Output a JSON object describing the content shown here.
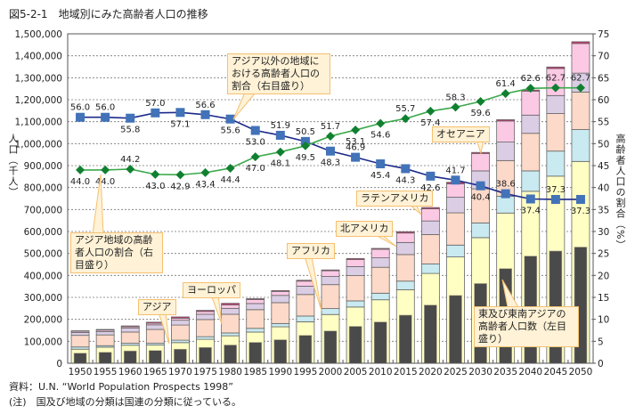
{
  "title": "図5-2-1　地域別にみた高齢者人口の推移",
  "source": "資料：U.N. “World Population Prospects 1998”",
  "note": "(注)　国及び地域の分類は国連の分類に従っている。",
  "chart_data": {
    "type": "bar",
    "stacked": true,
    "title": "地域別にみた高齢者人口の推移",
    "ylabel": "人口（千人）",
    "ylabel_right": "高齢者人口の割合（%）",
    "ylim": [
      0,
      1500000
    ],
    "ylim_right": [
      0,
      75
    ],
    "yticks": [
      "0",
      "100,000",
      "200,000",
      "300,000",
      "400,000",
      "500,000",
      "600,000",
      "700,000",
      "800,000",
      "900,000",
      "1,000,000",
      "1,100,000",
      "1,200,000",
      "1,300,000",
      "1,400,000",
      "1,500,000"
    ],
    "yticks_right": [
      "0",
      "5",
      "10",
      "15",
      "20",
      "25",
      "30",
      "35",
      "40",
      "45",
      "50",
      "55",
      "60",
      "65",
      "70",
      "75"
    ],
    "grid": true,
    "categories": [
      "1950",
      "1955",
      "1960",
      "1965",
      "1970",
      "1975",
      "1980",
      "1985",
      "1990",
      "1995",
      "2000",
      "2005",
      "2010",
      "2015",
      "2020",
      "2025",
      "2030",
      "2035",
      "2040",
      "2045",
      "2050"
    ],
    "series": [
      {
        "name": "アジア",
        "color": "#ffffc4",
        "values": [
          64000,
          73000,
          82000,
          83000,
          94000,
          109000,
          125000,
          142000,
          166000,
          189000,
          222000,
          256000,
          289000,
          335000,
          409000,
          484000,
          572000,
          684000,
          783000,
          852000,
          919000
        ]
      },
      {
        "name": "アフリカ",
        "color": "#c8eaf0",
        "values": [
          10000,
          7000,
          9000,
          8000,
          11000,
          12000,
          13000,
          17000,
          15000,
          26000,
          27000,
          28000,
          30000,
          39000,
          43000,
          54000,
          67000,
          76000,
          93000,
          114000,
          145000
        ]
      },
      {
        "name": "ヨーロッパ",
        "color": "#fcd9c8",
        "values": [
          53000,
          49000,
          51000,
          63000,
          69000,
          78000,
          85000,
          85000,
          95000,
          98000,
          109000,
          115000,
          118000,
          121000,
          134000,
          147000,
          155000,
          163000,
          171000,
          171000,
          171000
        ]
      },
      {
        "name": "北アメリカ",
        "color": "#dacde4",
        "values": [
          13000,
          15000,
          18000,
          21000,
          22000,
          24000,
          27000,
          28000,
          33000,
          38000,
          37000,
          41000,
          43000,
          55000,
          62000,
          71000,
          82000,
          84000,
          83000,
          82000,
          86000
        ]
      },
      {
        "name": "ラテンアメリカ",
        "color": "#fcc9e4",
        "values": [
          6000,
          7000,
          6000,
          7000,
          9000,
          13000,
          16000,
          18000,
          18000,
          23000,
          26000,
          32000,
          39000,
          43000,
          55000,
          61000,
          79000,
          96000,
          109000,
          123000,
          135000
        ]
      },
      {
        "name": "オセアニア",
        "color": "#d0306e",
        "values": [
          2000,
          3000,
          4000,
          5000,
          6000,
          5000,
          7000,
          4000,
          4000,
          4000,
          4000,
          5000,
          4000,
          6000,
          6000,
          7000,
          5000,
          6000,
          5000,
          7000,
          8000
        ]
      }
    ],
    "overlay_bar": {
      "name": "東及び東南アジアの高齢者人口数（左目盛り）",
      "color": "#4a4a4a",
      "values": [
        46000,
        50000,
        56000,
        58000,
        64000,
        72000,
        83000,
        95000,
        107000,
        127000,
        147000,
        168000,
        188000,
        219000,
        265000,
        309000,
        363000,
        431000,
        488000,
        511000,
        529000
      ]
    },
    "lines": [
      {
        "name": "アジア以外の地域における高齢者人口の割合（右目盛り）",
        "axis": "right",
        "color": "#1c2a8a",
        "marker": "square",
        "marker_color": "#4272b8",
        "values": [
          56.0,
          56.0,
          55.8,
          57.0,
          57.1,
          56.6,
          55.6,
          53.0,
          51.9,
          50.5,
          48.3,
          46.9,
          45.4,
          44.3,
          42.6,
          41.7,
          40.4,
          38.6,
          37.4,
          37.3,
          37.3
        ],
        "labels": [
          "56.0",
          "56.0",
          "55.8",
          "57.0",
          "57.1",
          "56.6",
          "55.6",
          "53.0",
          "51.9",
          "50.5",
          "48.3",
          "46.9",
          "45.4",
          "44.3",
          "42.6",
          "41.7",
          "40.4",
          "38.6",
          "37.4",
          "37.3",
          "37.3"
        ],
        "label_pos": [
          "above",
          "above",
          "below",
          "above",
          "below",
          "above",
          "below",
          "below",
          "above",
          "above",
          "below",
          "above",
          "below",
          "below",
          "below",
          "above",
          "below",
          "above",
          "below",
          "above",
          "below"
        ]
      },
      {
        "name": "アジア地域の高齢者人口の割合（右目盛り）",
        "axis": "right",
        "color": "#3aa84a",
        "marker": "diamond",
        "marker_color": "#108030",
        "values": [
          44.0,
          44.0,
          44.2,
          43.0,
          42.9,
          43.4,
          44.4,
          47.0,
          48.1,
          49.5,
          51.7,
          53.1,
          54.6,
          55.7,
          57.4,
          58.3,
          59.6,
          61.4,
          62.6,
          62.7,
          62.7
        ],
        "labels": [
          "44.0",
          "44.0",
          "44.2",
          "43.0",
          "42.9",
          "43.4",
          "44.4",
          "47.0",
          "48.1",
          "49.5",
          "51.7",
          "53.1",
          "54.6",
          "55.7",
          "57.4",
          "58.3",
          "59.6",
          "61.4",
          "62.6",
          "62.7",
          "62.7"
        ],
        "label_pos": [
          "below",
          "below",
          "above",
          "below",
          "below",
          "below",
          "below",
          "below",
          "below",
          "below",
          "above",
          "below",
          "below",
          "above",
          "below",
          "above",
          "below",
          "above",
          "above",
          "above",
          "above"
        ]
      }
    ]
  },
  "callouts": {
    "non_asia_ratio": "アジア以外の地域における高齢者人口の割合（右目盛り）",
    "asia_ratio": "アジア地域の高齢者人口の割合（右目盛り）",
    "asia": "アジア",
    "europe": "ヨーロッパ",
    "africa": "アフリカ",
    "north_america": "北アメリカ",
    "latin_america": "ラテンアメリカ",
    "oceania": "オセアニア",
    "east_asia": "東及び東南アジアの高齢者人口数（左目盛り）"
  }
}
